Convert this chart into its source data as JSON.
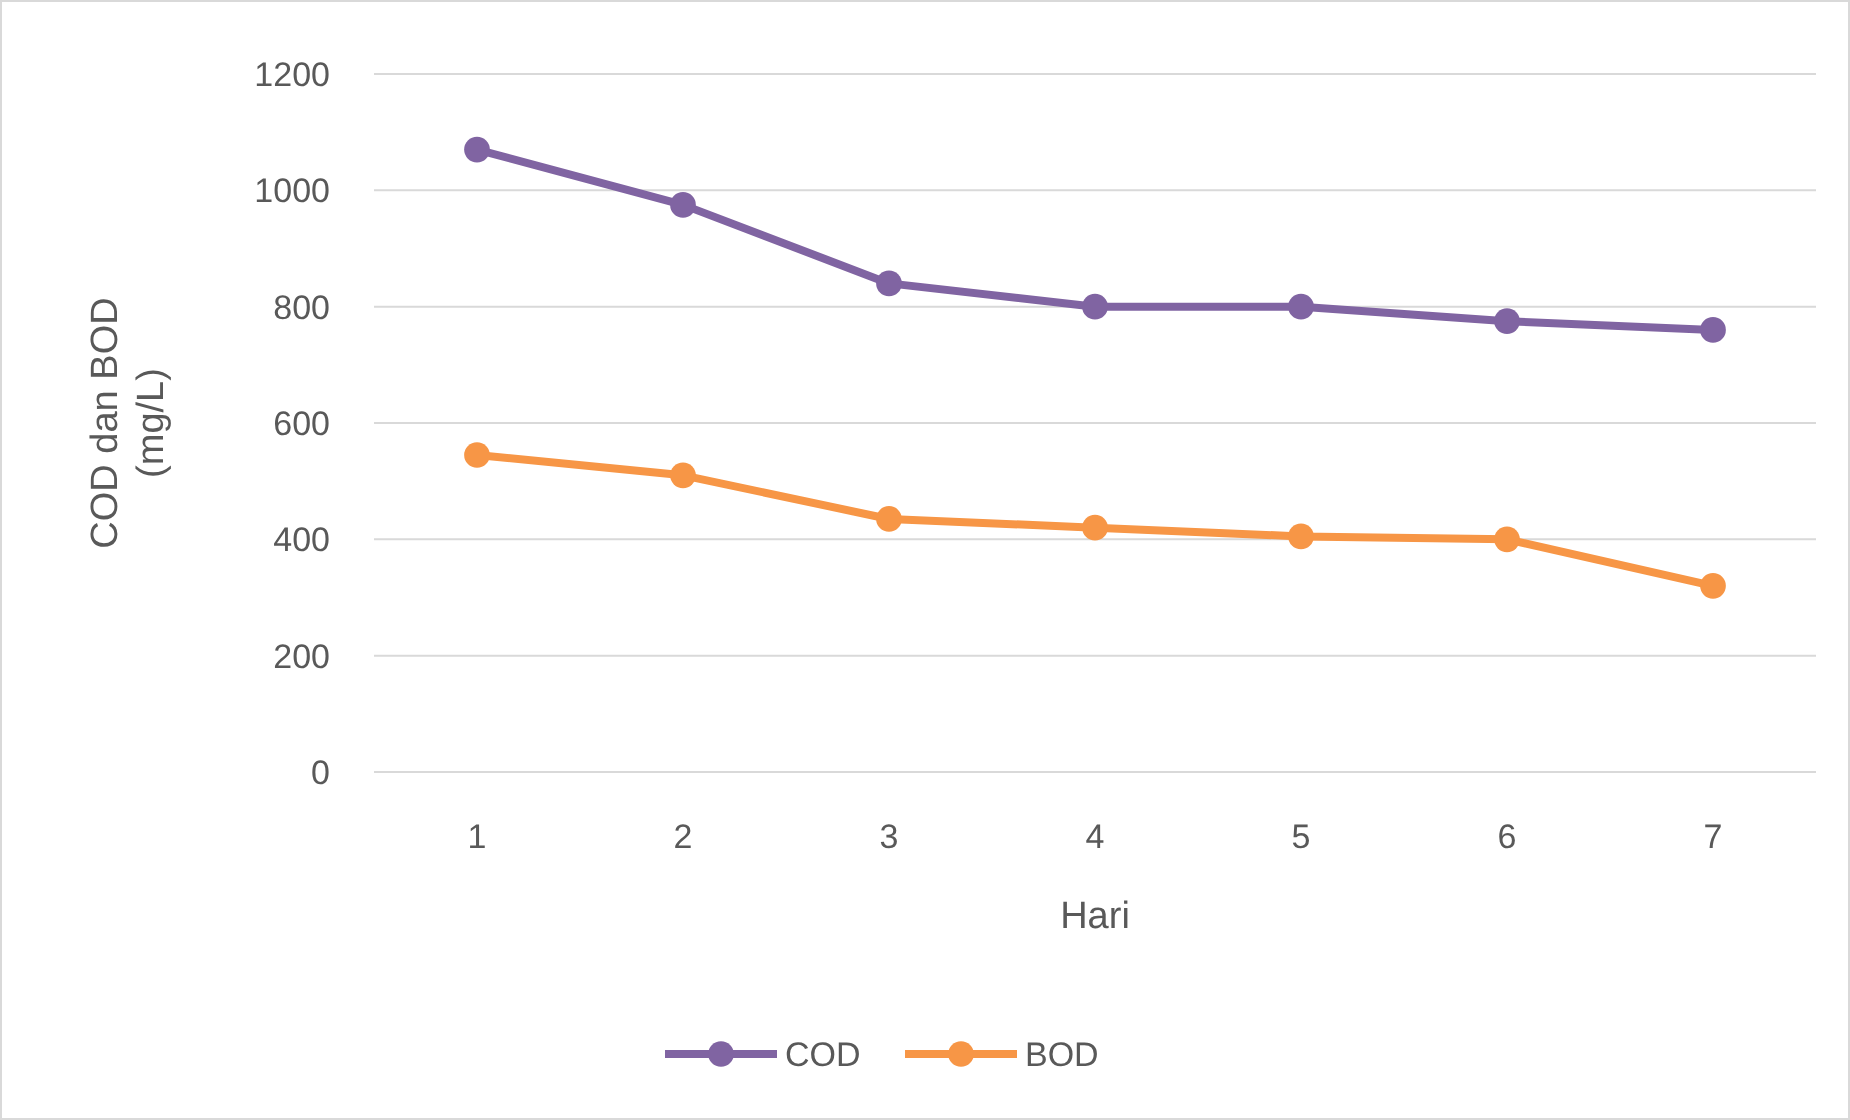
{
  "chart_data": {
    "type": "line",
    "categories": [
      "1",
      "2",
      "3",
      "4",
      "5",
      "6",
      "7"
    ],
    "xlabel": "Hari",
    "ylabel": "COD dan BOD\n(mg/L)",
    "ylim": [
      0,
      1200
    ],
    "yticks": [
      0,
      200,
      400,
      600,
      800,
      1000,
      1200
    ],
    "grid": "y",
    "legend": "bottom",
    "marker": "circle",
    "line_style": "solid",
    "series": [
      {
        "name": "COD",
        "color": "#8064a2",
        "values": [
          1070,
          975,
          840,
          800,
          800,
          775,
          760
        ]
      },
      {
        "name": "BOD",
        "color": "#f79646",
        "values": [
          545,
          510,
          435,
          420,
          405,
          400,
          320
        ]
      }
    ]
  }
}
